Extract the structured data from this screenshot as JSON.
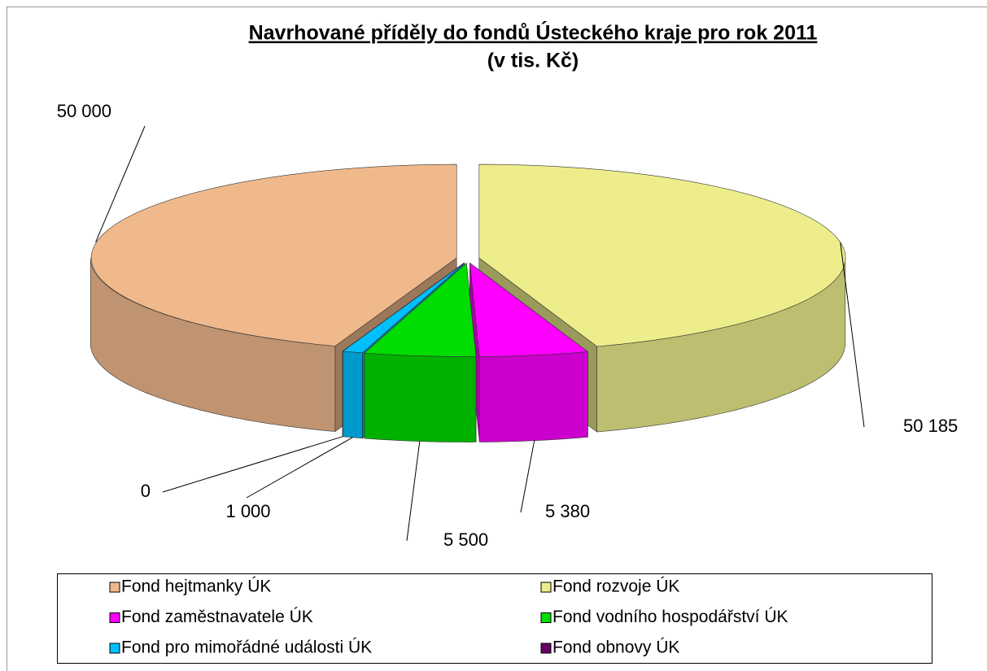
{
  "chart_data": {
    "type": "pie",
    "title": "Navrhované příděly do fondů Ústeckého kraje pro rok 2011",
    "subtitle": "(v tis. Kč)",
    "categories": [
      "Fond hejtmanky ÚK",
      "Fond rozvoje ÚK",
      "Fond zaměstnavatele ÚK",
      "Fond vodního hospodářství ÚK",
      "Fond pro mimořádné události ÚK",
      "Fond obnovy ÚK"
    ],
    "values": [
      50000,
      50185,
      5380,
      5500,
      1000,
      0
    ],
    "value_labels": [
      "50 000",
      "50 185",
      "5 380",
      "5 500",
      "1 000",
      "0"
    ],
    "colors": [
      "#f0b98c",
      "#eded8c",
      "#ff00ff",
      "#00dd00",
      "#00bfff",
      "#660066"
    ],
    "legend": "bottom"
  }
}
